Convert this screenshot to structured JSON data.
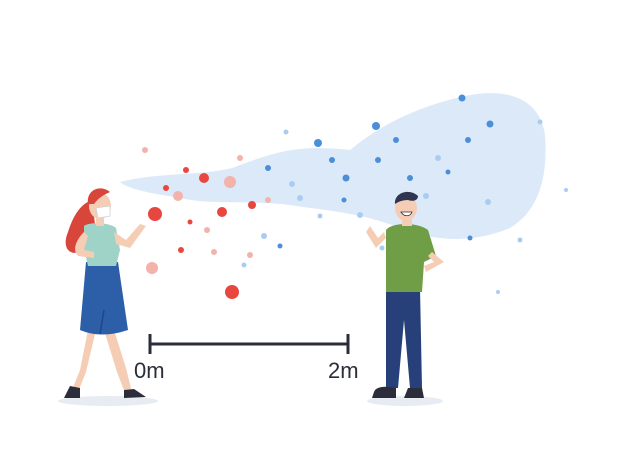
{
  "distance_ruler": {
    "start_label": "0m",
    "end_label": "2m"
  },
  "colors": {
    "cloud": "#dce9f8",
    "droplet_red": "#e8473f",
    "droplet_pink": "#f3b2aa",
    "droplet_blue": "#4a8fd8",
    "droplet_light_blue": "#a9cdf2",
    "ruler": "#2b2e3a",
    "woman_hair": "#d8453a",
    "woman_top": "#9fd3c8",
    "woman_skirt": "#2c5fa8",
    "man_shirt": "#6f9e46",
    "man_pants": "#27407a",
    "man_hair": "#2d3550",
    "skin": "#f5cdb5",
    "mask": "#ffffff",
    "shadow": "#e6ecf2"
  },
  "icons": {
    "woman": "woman-in-mask-figure",
    "man": "smiling-man-figure",
    "cloud": "aerosol-cloud-shape"
  }
}
